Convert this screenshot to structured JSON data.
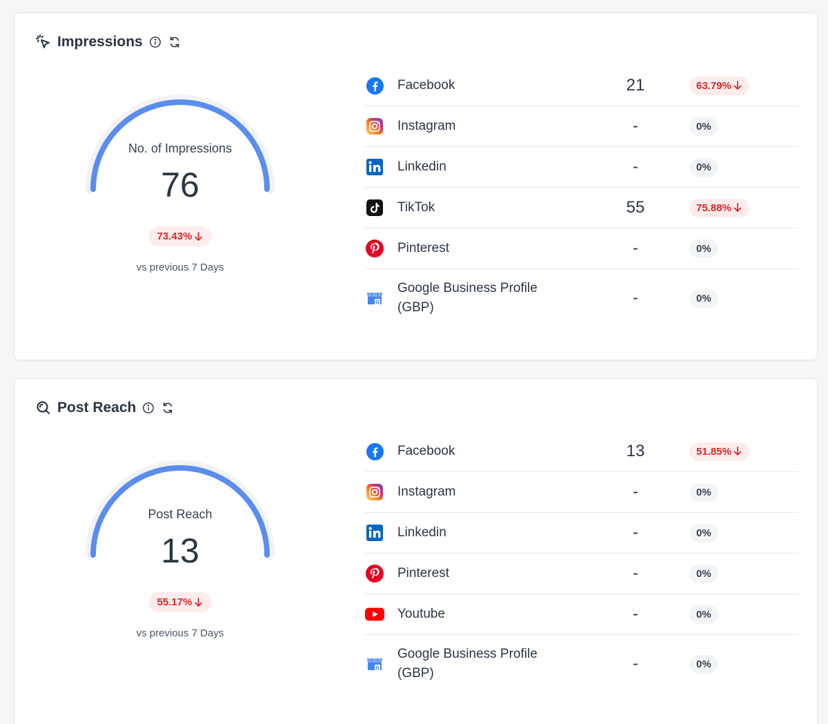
{
  "impressions": {
    "title": "Impressions",
    "gauge": {
      "label": "No. of Impressions",
      "value": "76",
      "change": "73.43%",
      "vs": "vs previous 7 Days",
      "color": "#5b8def"
    },
    "rows": [
      {
        "platform": "Facebook",
        "icon": "facebook-icon",
        "value": "21",
        "change": "63.79%",
        "trend": "down"
      },
      {
        "platform": "Instagram",
        "icon": "instagram-icon",
        "value": "-",
        "change": "0%",
        "trend": "neutral"
      },
      {
        "platform": "Linkedin",
        "icon": "linkedin-icon",
        "value": "-",
        "change": "0%",
        "trend": "neutral"
      },
      {
        "platform": "TikTok",
        "icon": "tiktok-icon",
        "value": "55",
        "change": "75.88%",
        "trend": "down"
      },
      {
        "platform": "Pinterest",
        "icon": "pinterest-icon",
        "value": "-",
        "change": "0%",
        "trend": "neutral"
      },
      {
        "platform": "Google Business Profile (GBP)",
        "icon": "google-business-icon",
        "value": "-",
        "change": "0%",
        "trend": "neutral"
      }
    ]
  },
  "post_reach": {
    "title": "Post Reach",
    "gauge": {
      "label": "Post Reach",
      "value": "13",
      "change": "55.17%",
      "vs": "vs previous 7 Days",
      "color": "#5b8def"
    },
    "rows": [
      {
        "platform": "Facebook",
        "icon": "facebook-icon",
        "value": "13",
        "change": "51.85%",
        "trend": "down"
      },
      {
        "platform": "Instagram",
        "icon": "instagram-icon",
        "value": "-",
        "change": "0%",
        "trend": "neutral"
      },
      {
        "platform": "Linkedin",
        "icon": "linkedin-icon",
        "value": "-",
        "change": "0%",
        "trend": "neutral"
      },
      {
        "platform": "Pinterest",
        "icon": "pinterest-icon",
        "value": "-",
        "change": "0%",
        "trend": "neutral"
      },
      {
        "platform": "Youtube",
        "icon": "youtube-icon",
        "value": "-",
        "change": "0%",
        "trend": "neutral"
      },
      {
        "platform": "Google Business Profile (GBP)",
        "icon": "google-business-icon",
        "value": "-",
        "change": "0%",
        "trend": "neutral"
      }
    ]
  },
  "colors": {
    "accent": "#5b8def",
    "negative": "#dc2626",
    "negative_bg": "#fdecec"
  }
}
